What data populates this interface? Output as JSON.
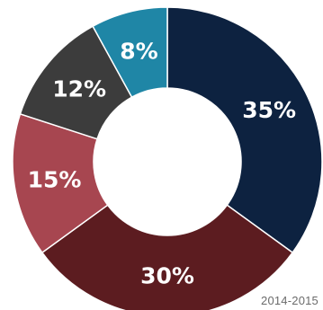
{
  "chart_data": {
    "type": "pie",
    "donut": true,
    "slices": [
      {
        "label": "35%",
        "value": 35,
        "color": "#0d2240"
      },
      {
        "label": "30%",
        "value": 30,
        "color": "#5c1c20"
      },
      {
        "label": "15%",
        "value": 15,
        "color": "#a74650"
      },
      {
        "label": "12%",
        "value": 12,
        "color": "#3c3c3c"
      },
      {
        "label": "8%",
        "value": 8,
        "color": "#1f86a6"
      }
    ],
    "annotation": "2014-2015"
  }
}
